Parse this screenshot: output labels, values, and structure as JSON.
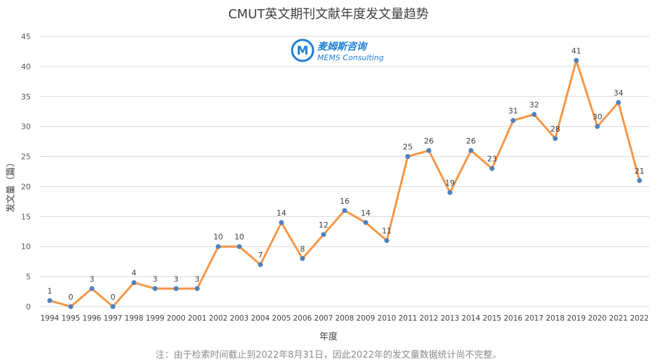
{
  "chart_data": {
    "type": "line",
    "title": "CMUT英文期刊文献年度发文量趋势",
    "xlabel": "年度",
    "ylabel": "发文量（篇）",
    "ylim": [
      0,
      45
    ],
    "yticks": [
      0,
      5,
      10,
      15,
      20,
      25,
      30,
      35,
      40,
      45
    ],
    "grid": true,
    "categories": [
      "1994",
      "1995",
      "1996",
      "1997",
      "1998",
      "1999",
      "2000",
      "2001",
      "2002",
      "2003",
      "2004",
      "2005",
      "2006",
      "2007",
      "2008",
      "2009",
      "2010",
      "2011",
      "2012",
      "2013",
      "2014",
      "2015",
      "2016",
      "2017",
      "2018",
      "2019",
      "2020",
      "2021",
      "2022"
    ],
    "series": [
      {
        "values": [
          1,
          0,
          3,
          0,
          4,
          3,
          3,
          3,
          10,
          10,
          7,
          14,
          8,
          12,
          16,
          14,
          11,
          25,
          26,
          19,
          26,
          23,
          31,
          32,
          28,
          41,
          30,
          34,
          21
        ]
      }
    ],
    "colors": {
      "line": "#f79646",
      "marker": "#4f81bd",
      "grid": "#d9d9d9"
    }
  },
  "note": "注：由于检索时间截止到2022年8月31日，因此2022年的发文量数据统计尚不完整。",
  "logo": {
    "letter": "M",
    "name_cn": "麦姆斯咨询",
    "name_en": "MEMS Consulting"
  }
}
